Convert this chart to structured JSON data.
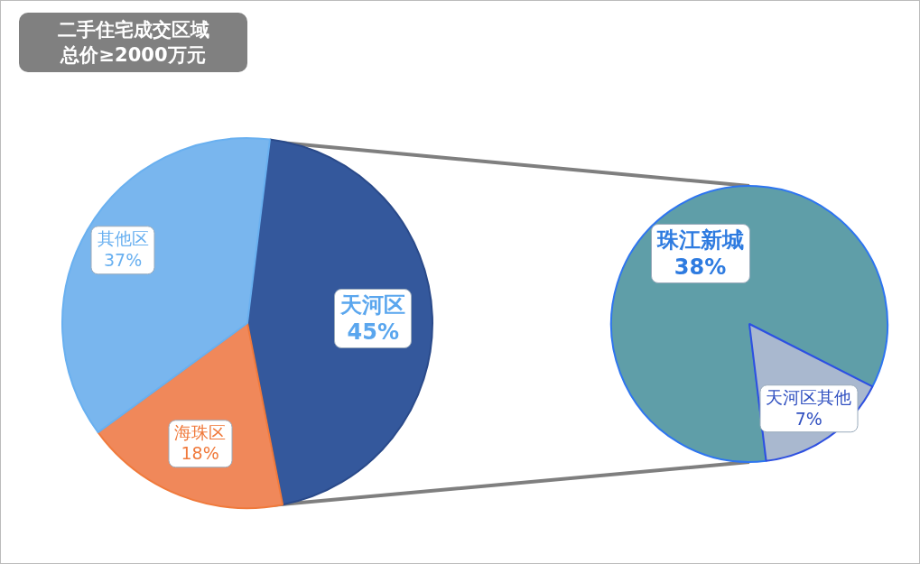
{
  "chart_data": [
    {
      "type": "pie",
      "title": "二手住宅成交区域总价≥2000万元",
      "categories": [
        "天河区",
        "海珠区",
        "其他区"
      ],
      "values": [
        45,
        18,
        37
      ],
      "value_labels": [
        "45%",
        "18%",
        "37%"
      ],
      "colors": [
        "#34589c",
        "#f0885a",
        "#79b6ee"
      ],
      "legend": false
    },
    {
      "type": "pie",
      "categories": [
        "珠江新城",
        "天河区其他"
      ],
      "values": [
        38,
        7
      ],
      "value_labels": [
        "38%",
        "7%"
      ],
      "colors": [
        "#5f9ea8",
        "#a9b8cf"
      ],
      "legend": false
    }
  ]
}
